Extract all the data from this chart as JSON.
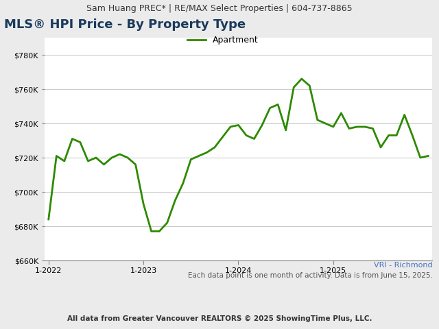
{
  "header_text": "Sam Huang PREC* | RE/MAX Select Properties | 604-737-8865",
  "title": "MLS® HPI Price - By Property Type",
  "legend_label": "Apartment",
  "line_color": "#2d8a00",
  "line_width": 2.0,
  "footer_line1": "VRI - Richmond",
  "footer_line2": "Each data point is one month of activity. Data is from June 15, 2025.",
  "footer_line3": "All data from Greater Vancouver REALTORS © 2025 ShowingTime Plus, LLC.",
  "background_color": "#ebebeb",
  "plot_background_color": "#ffffff",
  "header_bg_color": "#e0e0e0",
  "ylim": [
    660000,
    790000
  ],
  "yticks": [
    660000,
    680000,
    700000,
    720000,
    740000,
    760000,
    780000
  ],
  "x_tick_labels": [
    "1-2022",
    "1-2023",
    "1-2024",
    "1-2025"
  ],
  "x_tick_positions": [
    0,
    12,
    24,
    36
  ],
  "values": [
    684000,
    721000,
    718000,
    731000,
    729000,
    718000,
    720000,
    716000,
    720000,
    722000,
    720000,
    716000,
    693000,
    677000,
    677000,
    682000,
    695000,
    705000,
    719000,
    721000,
    723000,
    726000,
    732000,
    738000,
    739000,
    733000,
    731000,
    739000,
    749000,
    751000,
    736000,
    761000,
    766000,
    762000,
    742000,
    740000,
    738000,
    746000,
    737000,
    738000,
    738000,
    737000,
    726000,
    733000,
    733000,
    745000,
    733000,
    720000,
    721000
  ],
  "header_fontsize": 9,
  "title_fontsize": 13,
  "legend_fontsize": 9,
  "tick_fontsize": 8,
  "footer1_fontsize": 8,
  "footer2_fontsize": 7.5,
  "footer3_fontsize": 7.5,
  "title_color": "#1a3a5c",
  "footer1_color": "#4472c4",
  "footer2_color": "#555555",
  "footer3_color": "#333333",
  "header_text_color": "#333333",
  "grid_color": "#cccccc",
  "spine_color": "#888888"
}
